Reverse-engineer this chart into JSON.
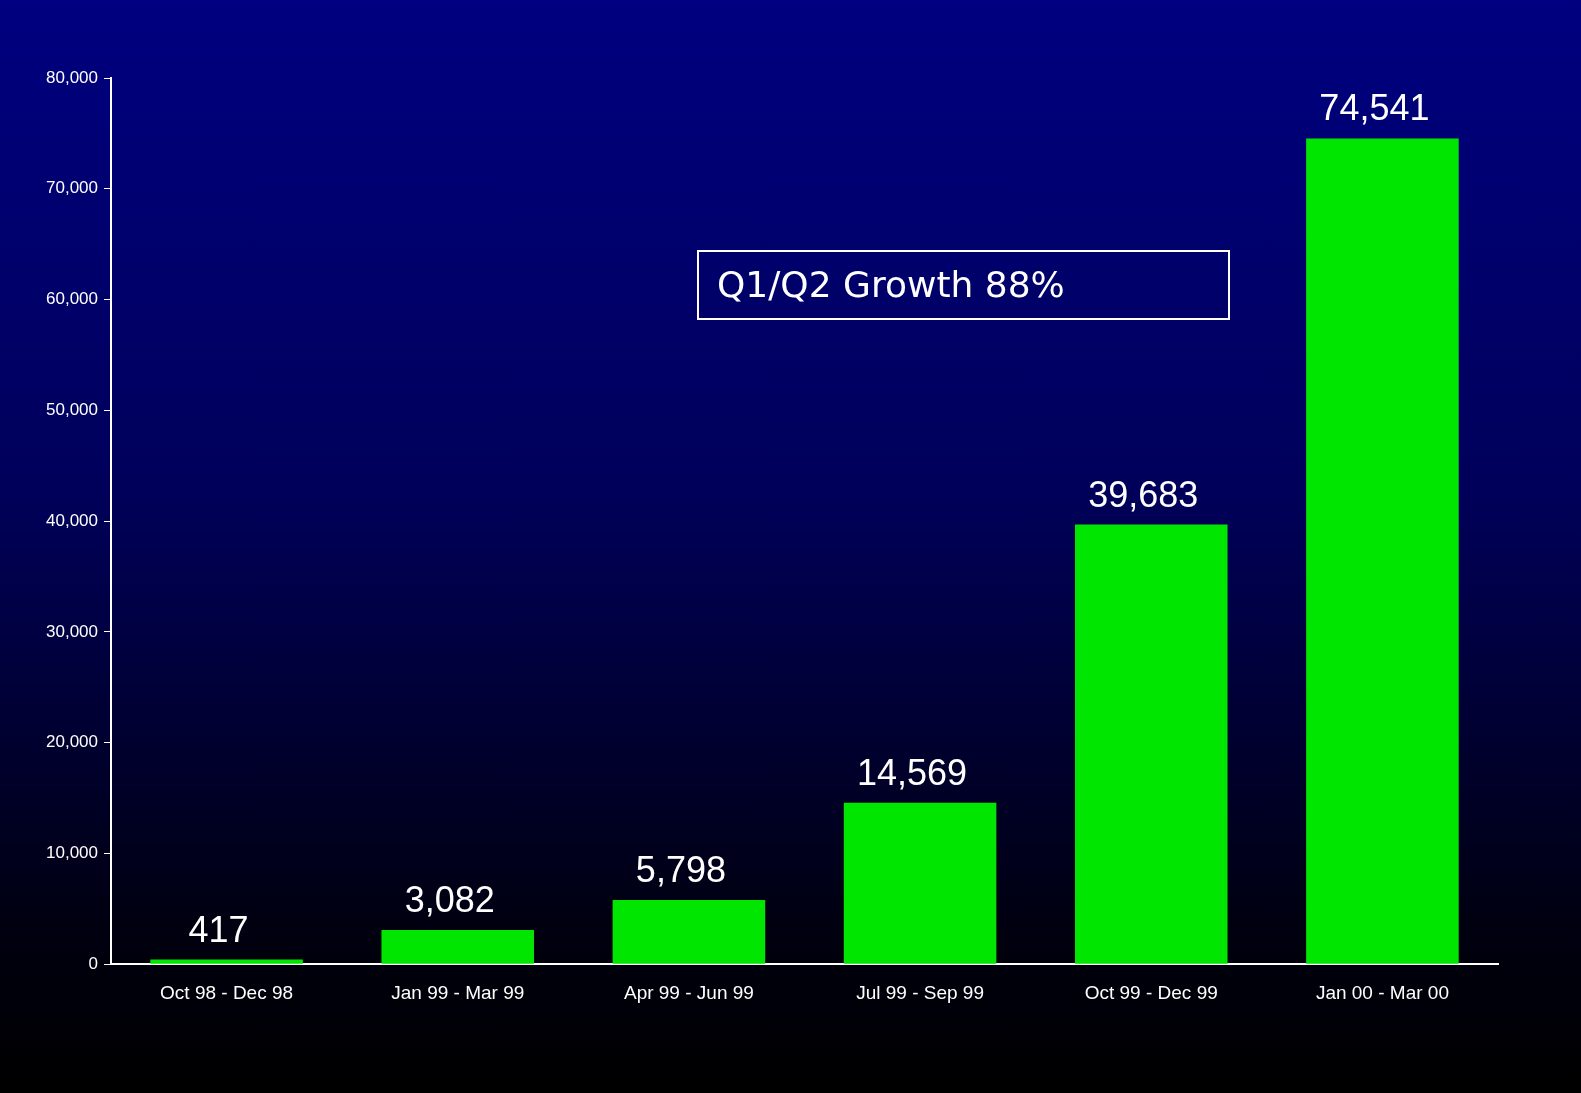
{
  "chart_data": {
    "type": "bar",
    "categories": [
      "Oct 98 - Dec 98",
      "Jan 99 - Mar 99",
      "Apr 99 - Jun 99",
      "Jul 99 - Sep 99",
      "Oct 99 - Dec 99",
      "Jan 00 - Mar 00"
    ],
    "values": [
      417,
      3082,
      5798,
      14569,
      39683,
      74541
    ],
    "color": "#00e600",
    "ylim": [
      0,
      80000
    ],
    "yticks": [
      {
        "value": 0,
        "label": "0"
      },
      {
        "value": 10000,
        "label": "10,000"
      },
      {
        "value": 20000,
        "label": "20,000"
      },
      {
        "value": 30000,
        "label": "30,000"
      },
      {
        "value": 40000,
        "label": "40,000"
      },
      {
        "value": 50000,
        "label": "50,000"
      },
      {
        "value": 60000,
        "label": "60,000"
      },
      {
        "value": 70000,
        "label": "70,000"
      },
      {
        "value": 80000,
        "label": "80,000"
      }
    ],
    "value_labels": [
      "417",
      "3,082",
      "5,798",
      "14,569",
      "39,683",
      "74,541"
    ],
    "annotations": [
      "Q1/Q2 Growth 88%"
    ],
    "grid": false,
    "legend": false
  }
}
